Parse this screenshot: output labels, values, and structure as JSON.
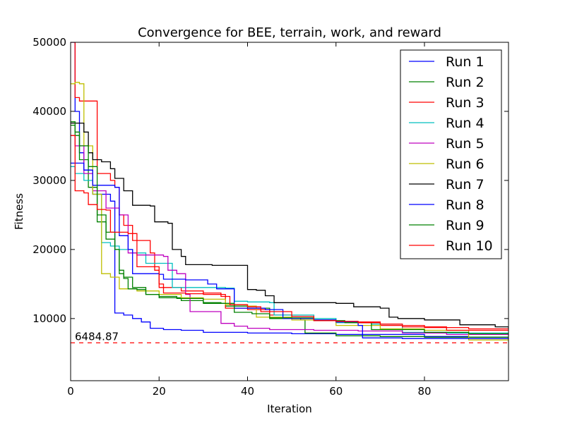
{
  "chart_data": {
    "type": "line",
    "title": "Convergence for BEE, terrain, work, and reward",
    "xlabel": "Iteration",
    "ylabel": "Fitness",
    "xlim": [
      0,
      99
    ],
    "ylim": [
      1000,
      50000
    ],
    "x_ticks": [
      0,
      20,
      40,
      60,
      80
    ],
    "y_ticks": [
      10000,
      20000,
      30000,
      40000,
      50000
    ],
    "grid": false,
    "legend_position": "top-right",
    "reference_line": {
      "value": 6484.87,
      "label": "6484.87",
      "color": "#ff0000",
      "style": "dashed"
    },
    "series": [
      {
        "name": "Run 1",
        "color": "#0000ff",
        "points": [
          [
            0,
            50000
          ],
          [
            1,
            40000
          ],
          [
            2,
            34000
          ],
          [
            3,
            31500
          ],
          [
            5,
            28000
          ],
          [
            9,
            27000
          ],
          [
            10,
            10800
          ],
          [
            12,
            10500
          ],
          [
            14,
            10000
          ],
          [
            16,
            9500
          ],
          [
            18,
            8600
          ],
          [
            21,
            8400
          ],
          [
            25,
            8300
          ],
          [
            30,
            8000
          ],
          [
            40,
            7900
          ],
          [
            50,
            7800
          ],
          [
            60,
            7700
          ],
          [
            70,
            7700
          ],
          [
            80,
            7400
          ],
          [
            90,
            7300
          ],
          [
            99,
            7300
          ]
        ]
      },
      {
        "name": "Run 2",
        "color": "#008000",
        "points": [
          [
            0,
            38000
          ],
          [
            1,
            36500
          ],
          [
            2,
            33000
          ],
          [
            4,
            29000
          ],
          [
            6,
            24000
          ],
          [
            8,
            21500
          ],
          [
            10,
            20000
          ],
          [
            11,
            17000
          ],
          [
            12,
            16000
          ],
          [
            14,
            14500
          ],
          [
            17,
            13500
          ],
          [
            20,
            13000
          ],
          [
            25,
            12600
          ],
          [
            30,
            12200
          ],
          [
            35,
            11800
          ],
          [
            40,
            11500
          ],
          [
            45,
            10000
          ],
          [
            52,
            9800
          ],
          [
            53,
            7900
          ],
          [
            60,
            7500
          ],
          [
            70,
            7400
          ],
          [
            80,
            7300
          ],
          [
            99,
            7300
          ]
        ]
      },
      {
        "name": "Run 3",
        "color": "#ff0000",
        "points": [
          [
            0,
            50000
          ],
          [
            1,
            42000
          ],
          [
            2,
            41500
          ],
          [
            5,
            41500
          ],
          [
            6,
            31000
          ],
          [
            9,
            30000
          ],
          [
            10,
            29000
          ],
          [
            11,
            25000
          ],
          [
            12,
            23500
          ],
          [
            14,
            21300
          ],
          [
            18,
            19500
          ],
          [
            19,
            17000
          ],
          [
            20,
            14500
          ],
          [
            25,
            14000
          ],
          [
            30,
            13500
          ],
          [
            35,
            11500
          ],
          [
            40,
            11300
          ],
          [
            45,
            10500
          ],
          [
            50,
            10000
          ],
          [
            55,
            9800
          ],
          [
            60,
            9500
          ],
          [
            70,
            9000
          ],
          [
            80,
            8700
          ],
          [
            90,
            8500
          ],
          [
            99,
            8500
          ]
        ]
      },
      {
        "name": "Run 4",
        "color": "#00bfbf",
        "points": [
          [
            0,
            32000
          ],
          [
            1,
            31000
          ],
          [
            3,
            30000
          ],
          [
            5,
            28000
          ],
          [
            7,
            21000
          ],
          [
            9,
            20500
          ],
          [
            11,
            20000
          ],
          [
            14,
            19500
          ],
          [
            17,
            18000
          ],
          [
            21,
            18000
          ],
          [
            23,
            14500
          ],
          [
            30,
            14500
          ],
          [
            35,
            14400
          ],
          [
            37,
            12500
          ],
          [
            40,
            12400
          ],
          [
            45,
            12300
          ],
          [
            46,
            10500
          ],
          [
            55,
            10000
          ],
          [
            60,
            9400
          ],
          [
            68,
            9200
          ],
          [
            75,
            8000
          ],
          [
            85,
            7900
          ],
          [
            99,
            7900
          ]
        ]
      },
      {
        "name": "Run 5",
        "color": "#bf00bf",
        "points": [
          [
            0,
            36500
          ],
          [
            1,
            35000
          ],
          [
            3,
            31000
          ],
          [
            5,
            28500
          ],
          [
            8,
            26000
          ],
          [
            11,
            25000
          ],
          [
            13,
            19500
          ],
          [
            15,
            19200
          ],
          [
            21,
            19000
          ],
          [
            22,
            17000
          ],
          [
            24,
            16500
          ],
          [
            26,
            13500
          ],
          [
            27,
            11000
          ],
          [
            33,
            11000
          ],
          [
            34,
            9300
          ],
          [
            37,
            8900
          ],
          [
            40,
            8600
          ],
          [
            45,
            8400
          ],
          [
            55,
            8300
          ],
          [
            65,
            8200
          ],
          [
            75,
            7900
          ],
          [
            85,
            7700
          ],
          [
            99,
            7500
          ]
        ]
      },
      {
        "name": "Run 6",
        "color": "#bfbf00",
        "points": [
          [
            0,
            44000
          ],
          [
            1,
            44200
          ],
          [
            2,
            44000
          ],
          [
            3,
            35000
          ],
          [
            5,
            28000
          ],
          [
            7,
            16500
          ],
          [
            9,
            16000
          ],
          [
            10,
            16000
          ],
          [
            11,
            14300
          ],
          [
            15,
            14000
          ],
          [
            20,
            13500
          ],
          [
            25,
            13000
          ],
          [
            30,
            12800
          ],
          [
            35,
            12000
          ],
          [
            40,
            11800
          ],
          [
            42,
            10200
          ],
          [
            50,
            9800
          ],
          [
            60,
            9000
          ],
          [
            70,
            8500
          ],
          [
            80,
            8300
          ],
          [
            90,
            6900
          ],
          [
            99,
            6500
          ]
        ]
      },
      {
        "name": "Run 7",
        "color": "#000000",
        "points": [
          [
            0,
            38300
          ],
          [
            2,
            38300
          ],
          [
            3,
            37000
          ],
          [
            4,
            34000
          ],
          [
            5,
            33000
          ],
          [
            7,
            32700
          ],
          [
            9,
            31700
          ],
          [
            10,
            30300
          ],
          [
            12,
            28500
          ],
          [
            14,
            26400
          ],
          [
            18,
            26300
          ],
          [
            19,
            24000
          ],
          [
            22,
            23800
          ],
          [
            23,
            20000
          ],
          [
            25,
            19000
          ],
          [
            26,
            17800
          ],
          [
            32,
            17700
          ],
          [
            39,
            17700
          ],
          [
            40,
            14200
          ],
          [
            42,
            14100
          ],
          [
            44,
            13300
          ],
          [
            46,
            12300
          ],
          [
            58,
            12300
          ],
          [
            60,
            12200
          ],
          [
            64,
            11700
          ],
          [
            70,
            11500
          ],
          [
            72,
            10200
          ],
          [
            74,
            10000
          ],
          [
            80,
            9800
          ],
          [
            88,
            9100
          ],
          [
            96,
            8800
          ],
          [
            99,
            8600
          ]
        ]
      },
      {
        "name": "Run 8",
        "color": "#0000ff",
        "points": [
          [
            0,
            32500
          ],
          [
            2,
            32500
          ],
          [
            3,
            31500
          ],
          [
            5,
            29300
          ],
          [
            10,
            29000
          ],
          [
            11,
            22000
          ],
          [
            13,
            20000
          ],
          [
            14,
            16500
          ],
          [
            20,
            16400
          ],
          [
            21,
            15700
          ],
          [
            26,
            15600
          ],
          [
            31,
            15000
          ],
          [
            33,
            14300
          ],
          [
            37,
            11500
          ],
          [
            42,
            11500
          ],
          [
            44,
            11300
          ],
          [
            48,
            10000
          ],
          [
            55,
            9800
          ],
          [
            60,
            9500
          ],
          [
            65,
            9000
          ],
          [
            66,
            7200
          ],
          [
            75,
            7100
          ],
          [
            85,
            7100
          ],
          [
            99,
            7000
          ]
        ]
      },
      {
        "name": "Run 9",
        "color": "#008000",
        "points": [
          [
            0,
            38500
          ],
          [
            1,
            37000
          ],
          [
            2,
            35000
          ],
          [
            4,
            32000
          ],
          [
            6,
            25000
          ],
          [
            8,
            22500
          ],
          [
            10,
            20000
          ],
          [
            11,
            16500
          ],
          [
            12,
            15800
          ],
          [
            13,
            14300
          ],
          [
            15,
            14200
          ],
          [
            17,
            13500
          ],
          [
            20,
            13200
          ],
          [
            24,
            12900
          ],
          [
            30,
            12300
          ],
          [
            34,
            12200
          ],
          [
            37,
            10900
          ],
          [
            41,
            10700
          ],
          [
            45,
            10100
          ],
          [
            55,
            9700
          ],
          [
            62,
            9400
          ],
          [
            68,
            8400
          ],
          [
            80,
            8000
          ],
          [
            90,
            7800
          ],
          [
            99,
            7800
          ]
        ]
      },
      {
        "name": "Run 10",
        "color": "#ff0000",
        "points": [
          [
            0,
            36500
          ],
          [
            1,
            28500
          ],
          [
            3,
            28200
          ],
          [
            4,
            26500
          ],
          [
            6,
            25800
          ],
          [
            8,
            25700
          ],
          [
            9,
            22500
          ],
          [
            13,
            22300
          ],
          [
            15,
            17500
          ],
          [
            20,
            15000
          ],
          [
            21,
            13700
          ],
          [
            26,
            13600
          ],
          [
            30,
            13700
          ],
          [
            34,
            13200
          ],
          [
            36,
            12000
          ],
          [
            40,
            11700
          ],
          [
            43,
            11000
          ],
          [
            50,
            10300
          ],
          [
            55,
            9700
          ],
          [
            60,
            9600
          ],
          [
            65,
            9400
          ],
          [
            70,
            9200
          ],
          [
            75,
            8800
          ],
          [
            85,
            8300
          ],
          [
            99,
            8300
          ]
        ]
      }
    ]
  }
}
